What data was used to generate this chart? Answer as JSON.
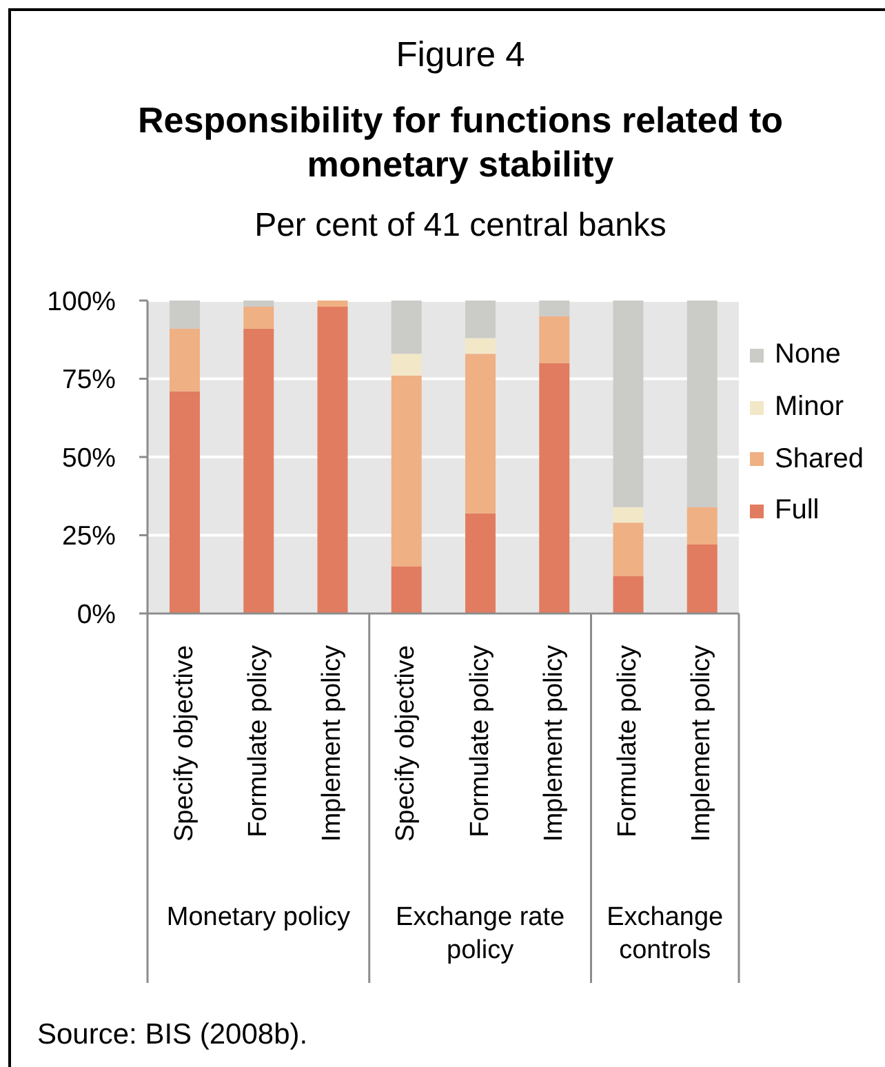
{
  "chart_data": {
    "type": "bar",
    "title": "Responsibility for functions related to monetary stability",
    "subtitle": "Per cent of 41 central banks",
    "annotations": [
      "Figure 4",
      "Monetary policy",
      "Exchange rate policy",
      "Exchange controls",
      "Source: BIS (2008b)."
    ],
    "categories": [
      "Specify objective",
      "Formulate policy",
      "Implement policy",
      "Specify objective",
      "Formulate policy",
      "Implement policy",
      "Formulate policy",
      "Implement policy"
    ],
    "series": [
      {
        "name": "Full",
        "color": "#e27c60",
        "values": [
          71,
          91,
          98,
          15,
          32,
          80,
          12,
          22
        ]
      },
      {
        "name": "Shared",
        "color": "#efb083",
        "values": [
          20,
          7,
          2,
          61,
          51,
          15,
          17,
          12
        ]
      },
      {
        "name": "Minor",
        "color": "#f2e8c8",
        "values": [
          0,
          0,
          0,
          7,
          5,
          0,
          5,
          0
        ]
      },
      {
        "name": "None",
        "color": "#cbcbc8",
        "values": [
          9,
          2,
          0,
          17,
          12,
          5,
          66,
          66
        ]
      }
    ],
    "stacked": true,
    "ylim": [
      0,
      100
    ],
    "yticks": [
      {
        "value": 0,
        "label": "0%"
      },
      {
        "value": 25,
        "label": "25%"
      },
      {
        "value": 50,
        "label": "50%"
      },
      {
        "value": 75,
        "label": "75%"
      },
      {
        "value": 100,
        "label": "100%"
      }
    ],
    "grid": "y",
    "legend": "right"
  }
}
